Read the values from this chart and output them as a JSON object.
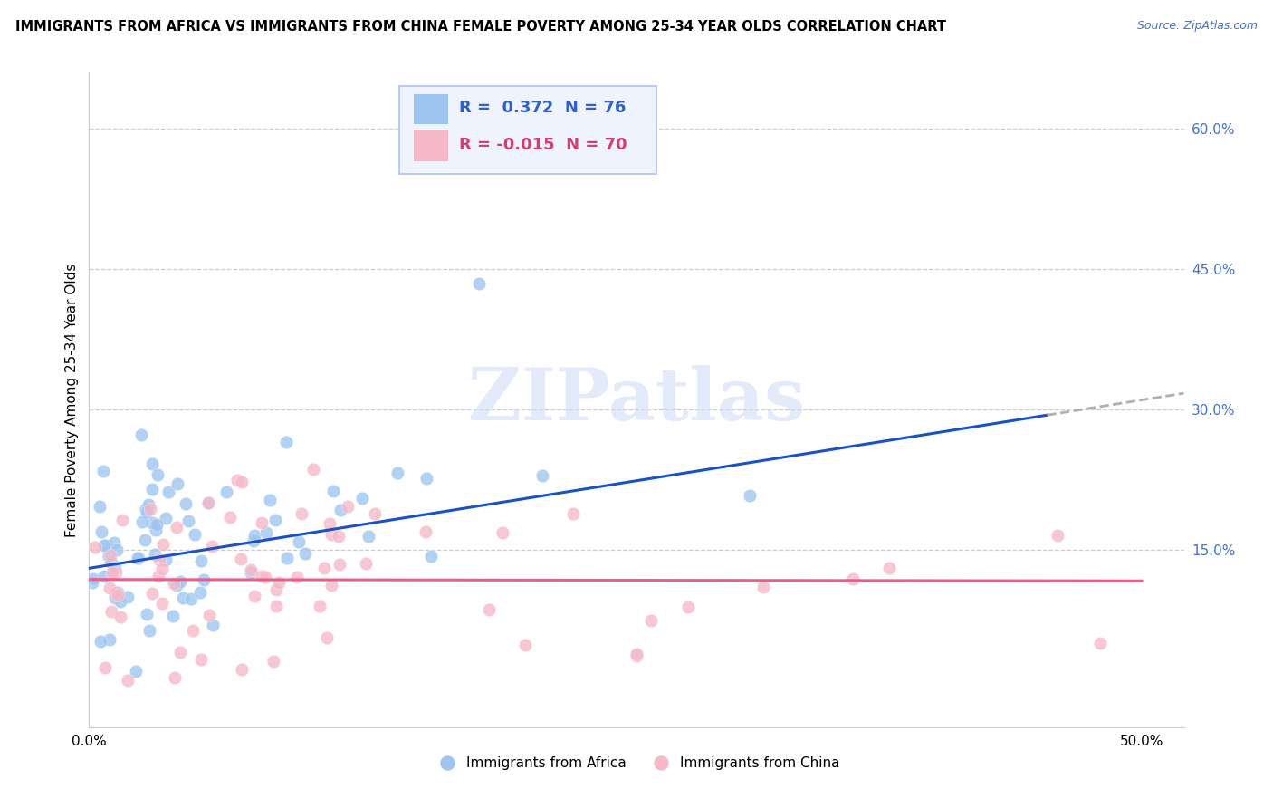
{
  "title": "IMMIGRANTS FROM AFRICA VS IMMIGRANTS FROM CHINA FEMALE POVERTY AMONG 25-34 YEAR OLDS CORRELATION CHART",
  "source": "Source: ZipAtlas.com",
  "ylabel": "Female Poverty Among 25-34 Year Olds",
  "xlim": [
    0.0,
    0.52
  ],
  "ylim": [
    -0.04,
    0.66
  ],
  "xticks": [
    0.0,
    0.1,
    0.2,
    0.3,
    0.4,
    0.5
  ],
  "xticklabels": [
    "0.0%",
    "",
    "",
    "",
    "",
    "50.0%"
  ],
  "yticks_right": [
    0.15,
    0.3,
    0.45,
    0.6
  ],
  "ytick_labels_right": [
    "15.0%",
    "30.0%",
    "45.0%",
    "60.0%"
  ],
  "africa_color": "#9ec5f0",
  "china_color": "#f5b8c8",
  "africa_R": 0.372,
  "africa_N": 76,
  "china_R": -0.015,
  "china_N": 70,
  "africa_line_color": "#1a52c4",
  "china_line_color": "#e8608a",
  "africa_line_ext_color": "#b0b0b0",
  "watermark": "ZIPatlas",
  "africa_intercept": 0.13,
  "africa_slope": 0.36,
  "china_intercept": 0.118,
  "china_slope": -0.003,
  "grid_color": "#cccccc",
  "spine_color": "#cccccc",
  "right_tick_color": "#4472c4",
  "legend_face": "#eef3fd",
  "legend_edge": "#aac4f0"
}
